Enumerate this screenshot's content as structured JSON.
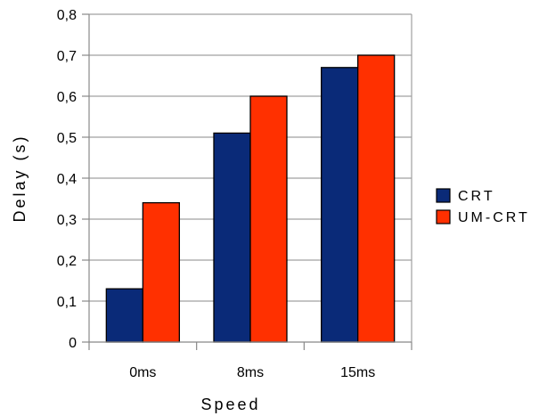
{
  "chart_data": {
    "type": "bar",
    "categories": [
      "0ms",
      "8ms",
      "15ms"
    ],
    "series": [
      {
        "name": "CRT",
        "values": [
          0.13,
          0.51,
          0.67
        ],
        "color": "#0a2a78"
      },
      {
        "name": "UM-CRT",
        "values": [
          0.34,
          0.6,
          0.7
        ],
        "color": "#ff3000"
      }
    ],
    "ylim": [
      0,
      0.8
    ],
    "yticks": [
      "0",
      "0,1",
      "0,2",
      "0,3",
      "0,4",
      "0,5",
      "0,6",
      "0,7",
      "0,8"
    ],
    "xlabel": "Speed",
    "ylabel": "Delay (s)",
    "grid": true,
    "legend": "right"
  }
}
